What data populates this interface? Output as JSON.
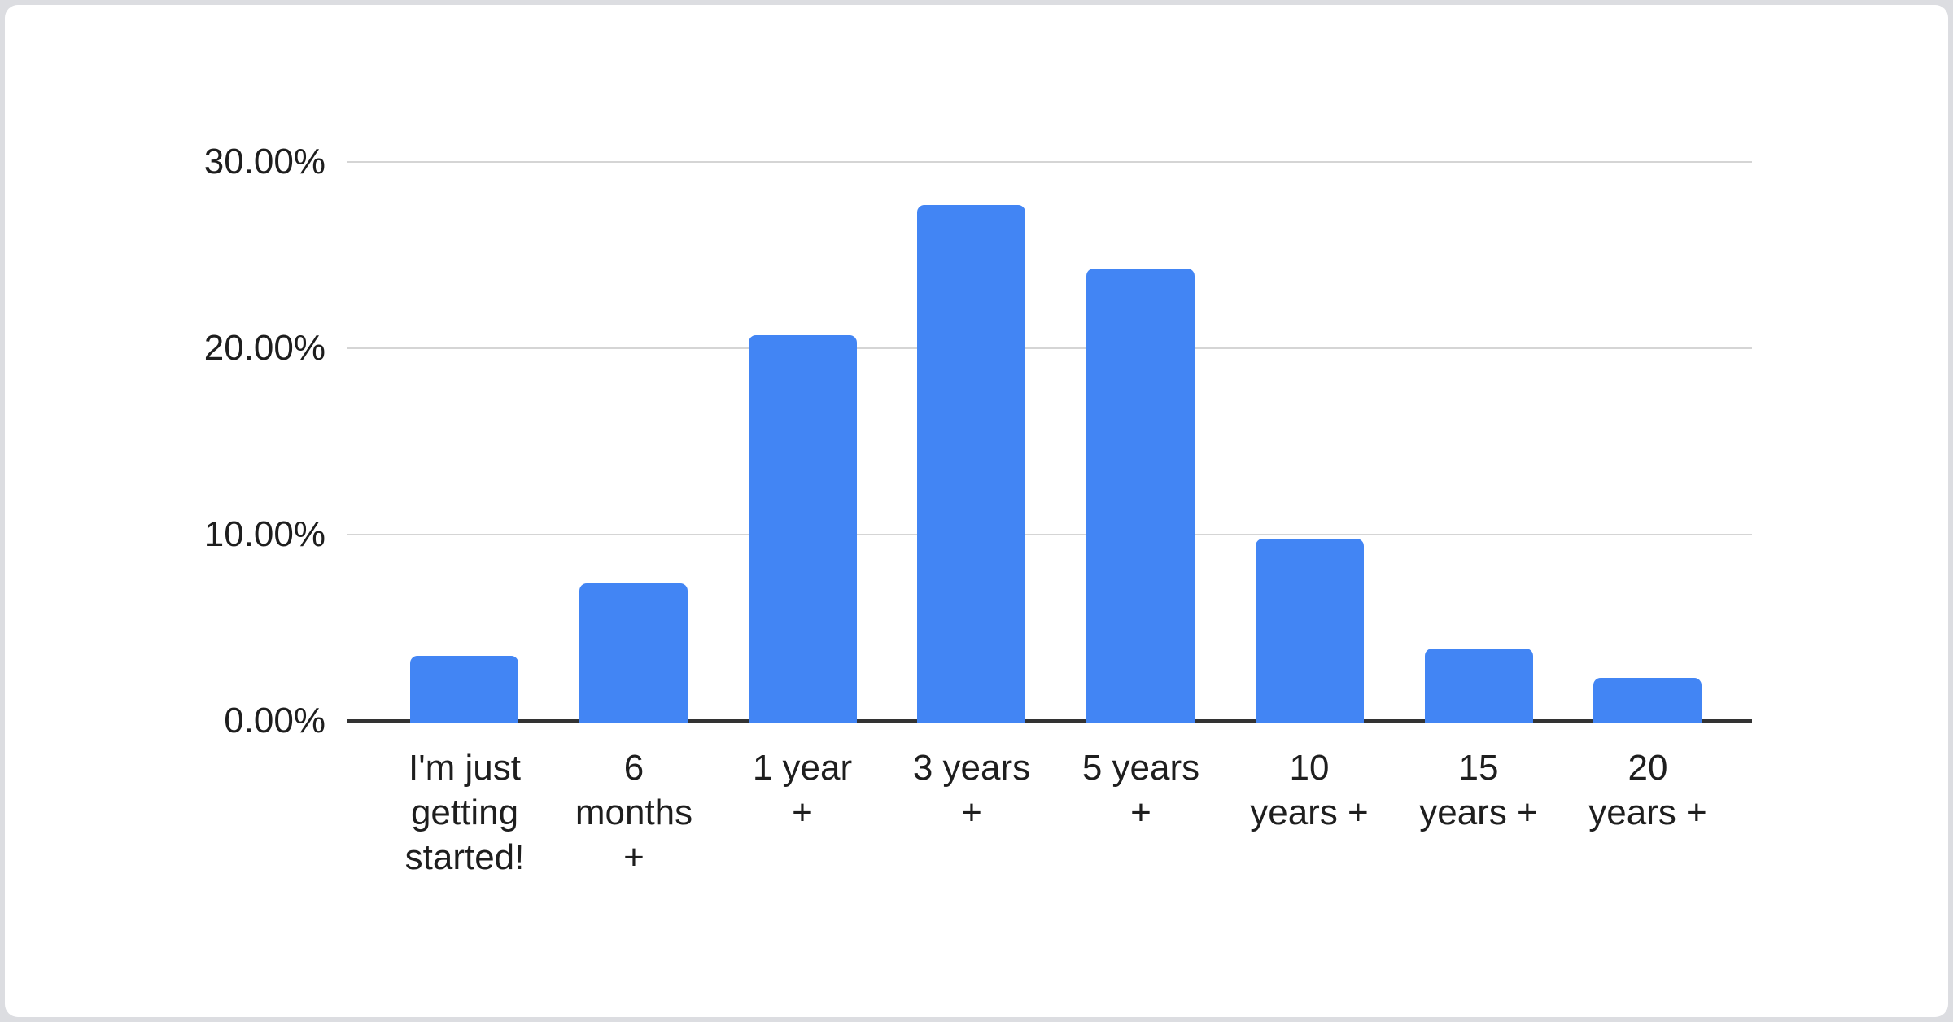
{
  "meta": {
    "background_color": "#dcdde1",
    "card_color": "#ffffff",
    "grid_color": "#d5d5d5",
    "axis_line_color": "#333333",
    "text_color": "#1e1e1e"
  },
  "chart_data": {
    "type": "bar",
    "title": "",
    "xlabel": "",
    "ylabel": "",
    "unit": "percent",
    "bar_color": "#4285F4",
    "grid": true,
    "legend": "none",
    "ylim": [
      0,
      30
    ],
    "yticks": [
      {
        "label": "0.00%",
        "value": 0
      },
      {
        "label": "10.00%",
        "value": 10
      },
      {
        "label": "20.00%",
        "value": 20
      },
      {
        "label": "30.00%",
        "value": 30
      }
    ],
    "categories": [
      "I'm just getting started!",
      "6 months +",
      "1 year +",
      "3 years +",
      "5 years +",
      "10 years +",
      "15 years +",
      "20 years +"
    ],
    "category_label_lines": [
      [
        "I'm just",
        "getting",
        "started!"
      ],
      [
        "6",
        "months",
        "+"
      ],
      [
        "1 year",
        "+"
      ],
      [
        "3 years",
        "+"
      ],
      [
        "5 years",
        "+"
      ],
      [
        "10",
        "years +"
      ],
      [
        "15",
        "years +"
      ],
      [
        "20",
        "years +"
      ]
    ],
    "values": [
      3.5,
      7.4,
      20.7,
      27.7,
      24.3,
      9.8,
      3.9,
      2.3
    ]
  }
}
